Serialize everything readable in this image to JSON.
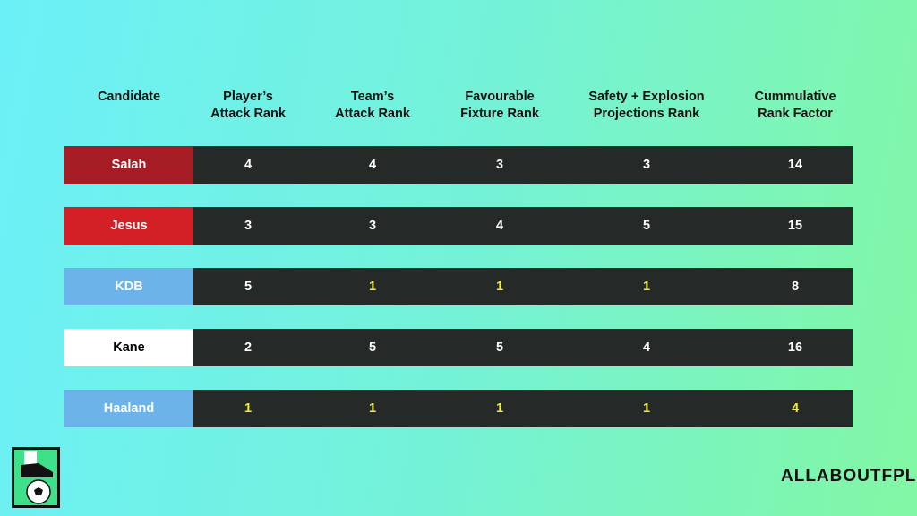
{
  "table": {
    "headers": [
      [
        "Candidate"
      ],
      [
        "Player’s",
        "Attack Rank"
      ],
      [
        "Team’s",
        "Attack Rank"
      ],
      [
        "Favourable",
        "Fixture Rank"
      ],
      [
        "Safety + Explosion",
        "Projections Rank"
      ],
      [
        "Cummulative",
        "Rank Factor"
      ]
    ],
    "rows": [
      {
        "name": "Salah",
        "color": "#a51c24",
        "text_color": "#ffffff",
        "cells": [
          4,
          4,
          3,
          3,
          14
        ]
      },
      {
        "name": "Jesus",
        "color": "#d32027",
        "text_color": "#ffffff",
        "cells": [
          3,
          3,
          4,
          5,
          15
        ]
      },
      {
        "name": "KDB",
        "color": "#6cb3ea",
        "text_color": "#ffffff",
        "cells": [
          5,
          1,
          1,
          1,
          8
        ]
      },
      {
        "name": "Kane",
        "color": "#ffffff",
        "text_color": "#000000",
        "cells": [
          2,
          5,
          5,
          4,
          16
        ]
      },
      {
        "name": "Haaland",
        "color": "#6cb3ea",
        "text_color": "#ffffff",
        "cells": [
          1,
          1,
          1,
          1,
          4
        ]
      }
    ]
  },
  "brand": "ALLABOUTFPL"
}
